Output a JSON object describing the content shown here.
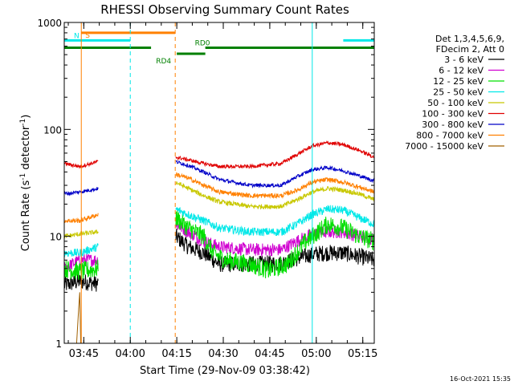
{
  "chart_data": {
    "type": "line",
    "title": "RHESSI Observing Summary Count Rates",
    "xlabel": "Start Time (29-Nov-09 03:38:42)",
    "ylabel": "Count Rate (s",
    "ylabel_sup1": "-1",
    "ylabel_mid": " detector",
    "ylabel_sup2": "-1",
    "ylabel_end": ")",
    "y_scale": "log",
    "ylim": [
      1,
      1000
    ],
    "y_ticks": [
      {
        "value": 1,
        "label": "1"
      },
      {
        "value": 10,
        "label": "10"
      },
      {
        "value": 100,
        "label": "100"
      },
      {
        "value": 1000,
        "label": "1000"
      }
    ],
    "x_unit": "minutes after 03:38:42",
    "xlim": [
      0,
      100
    ],
    "x_ticks": [
      {
        "value": 6.3,
        "label": "03:45"
      },
      {
        "value": 21.3,
        "label": "04:00"
      },
      {
        "value": 36.3,
        "label": "04:15"
      },
      {
        "value": 51.3,
        "label": "04:30"
      },
      {
        "value": 66.3,
        "label": "04:45"
      },
      {
        "value": 81.3,
        "label": "05:00"
      },
      {
        "value": 96.3,
        "label": "05:15"
      }
    ],
    "legend": {
      "placement": "right",
      "header": [
        "Det 1,3,4,5,6,9,",
        "FDecim 2, Att 0"
      ]
    },
    "series": [
      {
        "name": "3 - 6 keV",
        "color": "#000000",
        "noise": 0.18,
        "points": [
          [
            0,
            3.5
          ],
          [
            5,
            3.8
          ],
          [
            11,
            3.6
          ],
          [
            36,
            10
          ],
          [
            40,
            8
          ],
          [
            45,
            7
          ],
          [
            50,
            5.5
          ],
          [
            60,
            5.5
          ],
          [
            70,
            5.6
          ],
          [
            75,
            6.2
          ],
          [
            80,
            6.8
          ],
          [
            85,
            7.0
          ],
          [
            90,
            7.0
          ],
          [
            95,
            6.5
          ],
          [
            100,
            6.0
          ]
        ]
      },
      {
        "name": "6 - 12 keV",
        "color": "#d000d0",
        "noise": 0.14,
        "points": [
          [
            0,
            5
          ],
          [
            5,
            6
          ],
          [
            11,
            6
          ],
          [
            36,
            13
          ],
          [
            40,
            11
          ],
          [
            45,
            9
          ],
          [
            50,
            8
          ],
          [
            60,
            7.5
          ],
          [
            70,
            7.5
          ],
          [
            75,
            9
          ],
          [
            80,
            10.5
          ],
          [
            85,
            11
          ],
          [
            90,
            11
          ],
          [
            95,
            10
          ],
          [
            100,
            9.5
          ]
        ]
      },
      {
        "name": "12 - 25 keV",
        "color": "#00e000",
        "noise": 0.2,
        "points": [
          [
            0,
            5
          ],
          [
            5,
            4.7
          ],
          [
            11,
            5
          ],
          [
            36,
            15
          ],
          [
            40,
            12
          ],
          [
            45,
            10
          ],
          [
            48,
            7
          ],
          [
            52,
            6
          ],
          [
            60,
            5.5
          ],
          [
            66,
            4.8
          ],
          [
            72,
            5.5
          ],
          [
            78,
            9
          ],
          [
            85,
            13
          ],
          [
            90,
            12
          ],
          [
            95,
            10
          ],
          [
            100,
            9
          ]
        ]
      },
      {
        "name": "25 - 50 keV",
        "color": "#00e8e8",
        "noise": 0.09,
        "points": [
          [
            0,
            7
          ],
          [
            5,
            7
          ],
          [
            11,
            8
          ],
          [
            36,
            18
          ],
          [
            40,
            16
          ],
          [
            45,
            14
          ],
          [
            50,
            12
          ],
          [
            60,
            11
          ],
          [
            70,
            11
          ],
          [
            75,
            13
          ],
          [
            80,
            16
          ],
          [
            85,
            18
          ],
          [
            90,
            17.5
          ],
          [
            95,
            15
          ],
          [
            100,
            13
          ]
        ]
      },
      {
        "name": "50 - 100 keV",
        "color": "#c8c800",
        "noise": 0.05,
        "points": [
          [
            0,
            10
          ],
          [
            5,
            10.5
          ],
          [
            11,
            11
          ],
          [
            36,
            32
          ],
          [
            40,
            28
          ],
          [
            45,
            24
          ],
          [
            50,
            21
          ],
          [
            60,
            19
          ],
          [
            70,
            19
          ],
          [
            75,
            22
          ],
          [
            80,
            26
          ],
          [
            85,
            28
          ],
          [
            90,
            27
          ],
          [
            95,
            25
          ],
          [
            100,
            22
          ]
        ]
      },
      {
        "name": "100 - 300 keV",
        "color": "#e00000",
        "noise": 0.04,
        "points": [
          [
            0,
            48
          ],
          [
            5,
            45
          ],
          [
            11,
            50
          ],
          [
            36,
            55
          ],
          [
            40,
            52
          ],
          [
            45,
            48
          ],
          [
            50,
            45
          ],
          [
            60,
            45
          ],
          [
            70,
            48
          ],
          [
            75,
            58
          ],
          [
            80,
            70
          ],
          [
            85,
            75
          ],
          [
            90,
            72
          ],
          [
            95,
            64
          ],
          [
            100,
            55
          ]
        ]
      },
      {
        "name": "300 - 800 keV",
        "color": "#0000c8",
        "noise": 0.04,
        "points": [
          [
            0,
            25
          ],
          [
            5,
            26
          ],
          [
            11,
            28
          ],
          [
            36,
            50
          ],
          [
            40,
            46
          ],
          [
            45,
            40
          ],
          [
            50,
            34
          ],
          [
            60,
            30
          ],
          [
            70,
            30
          ],
          [
            75,
            36
          ],
          [
            80,
            42
          ],
          [
            85,
            44
          ],
          [
            90,
            41
          ],
          [
            95,
            37
          ],
          [
            100,
            33
          ]
        ]
      },
      {
        "name": "800 - 7000 keV",
        "color": "#ff8000",
        "noise": 0.05,
        "points": [
          [
            0,
            14
          ],
          [
            5,
            14
          ],
          [
            11,
            16
          ],
          [
            36,
            38
          ],
          [
            40,
            35
          ],
          [
            45,
            30
          ],
          [
            50,
            26
          ],
          [
            60,
            24
          ],
          [
            70,
            24
          ],
          [
            75,
            27
          ],
          [
            80,
            32
          ],
          [
            85,
            34
          ],
          [
            90,
            32
          ],
          [
            95,
            29
          ],
          [
            100,
            26
          ]
        ]
      },
      {
        "name": "7000 - 15000 keV",
        "color": "#a06000",
        "noise": 0,
        "points": [
          [
            3,
            1
          ],
          [
            4,
            1
          ],
          [
            4.5,
            1.8
          ],
          [
            5,
            3
          ],
          [
            5.3,
            1
          ],
          [
            8,
            1
          ]
        ]
      }
    ],
    "attenuator_bars": [
      {
        "label": "S",
        "color": "#ff8000",
        "x_start": 5.5,
        "x_end": 35.8,
        "level": 800
      },
      {
        "label": "N",
        "color": "#00e8e8",
        "x_start": 0,
        "x_end": 21.3,
        "level": 680
      },
      {
        "label": "N",
        "color": "#00e8e8",
        "x_start": 90,
        "x_end": 100,
        "level": 680
      },
      {
        "label": "RD0",
        "color": "#008000",
        "x_start": 45.5,
        "x_end": 100,
        "level": 580
      },
      {
        "label": "RD0",
        "color": "#008000",
        "x_start": 0,
        "x_end": 28,
        "level": 580
      },
      {
        "label": "RD4",
        "color": "#008000",
        "x_start": 36.3,
        "x_end": 45.5,
        "level": 510
      }
    ],
    "vlines": [
      {
        "x": 0,
        "color": "#00e8e8",
        "style": "solid"
      },
      {
        "x": 21.3,
        "color": "#00e8e8",
        "style": "dashed"
      },
      {
        "x": 80,
        "color": "#00e8e8",
        "style": "solid"
      },
      {
        "x": 100,
        "color": "#00e8e8",
        "style": "dashed"
      },
      {
        "x": 5.5,
        "color": "#ff8000",
        "style": "solid"
      },
      {
        "x": 35.8,
        "color": "#ff8000",
        "style": "dashed"
      }
    ]
  },
  "footer": {
    "datestamp": "16-Oct-2021 15:35"
  }
}
